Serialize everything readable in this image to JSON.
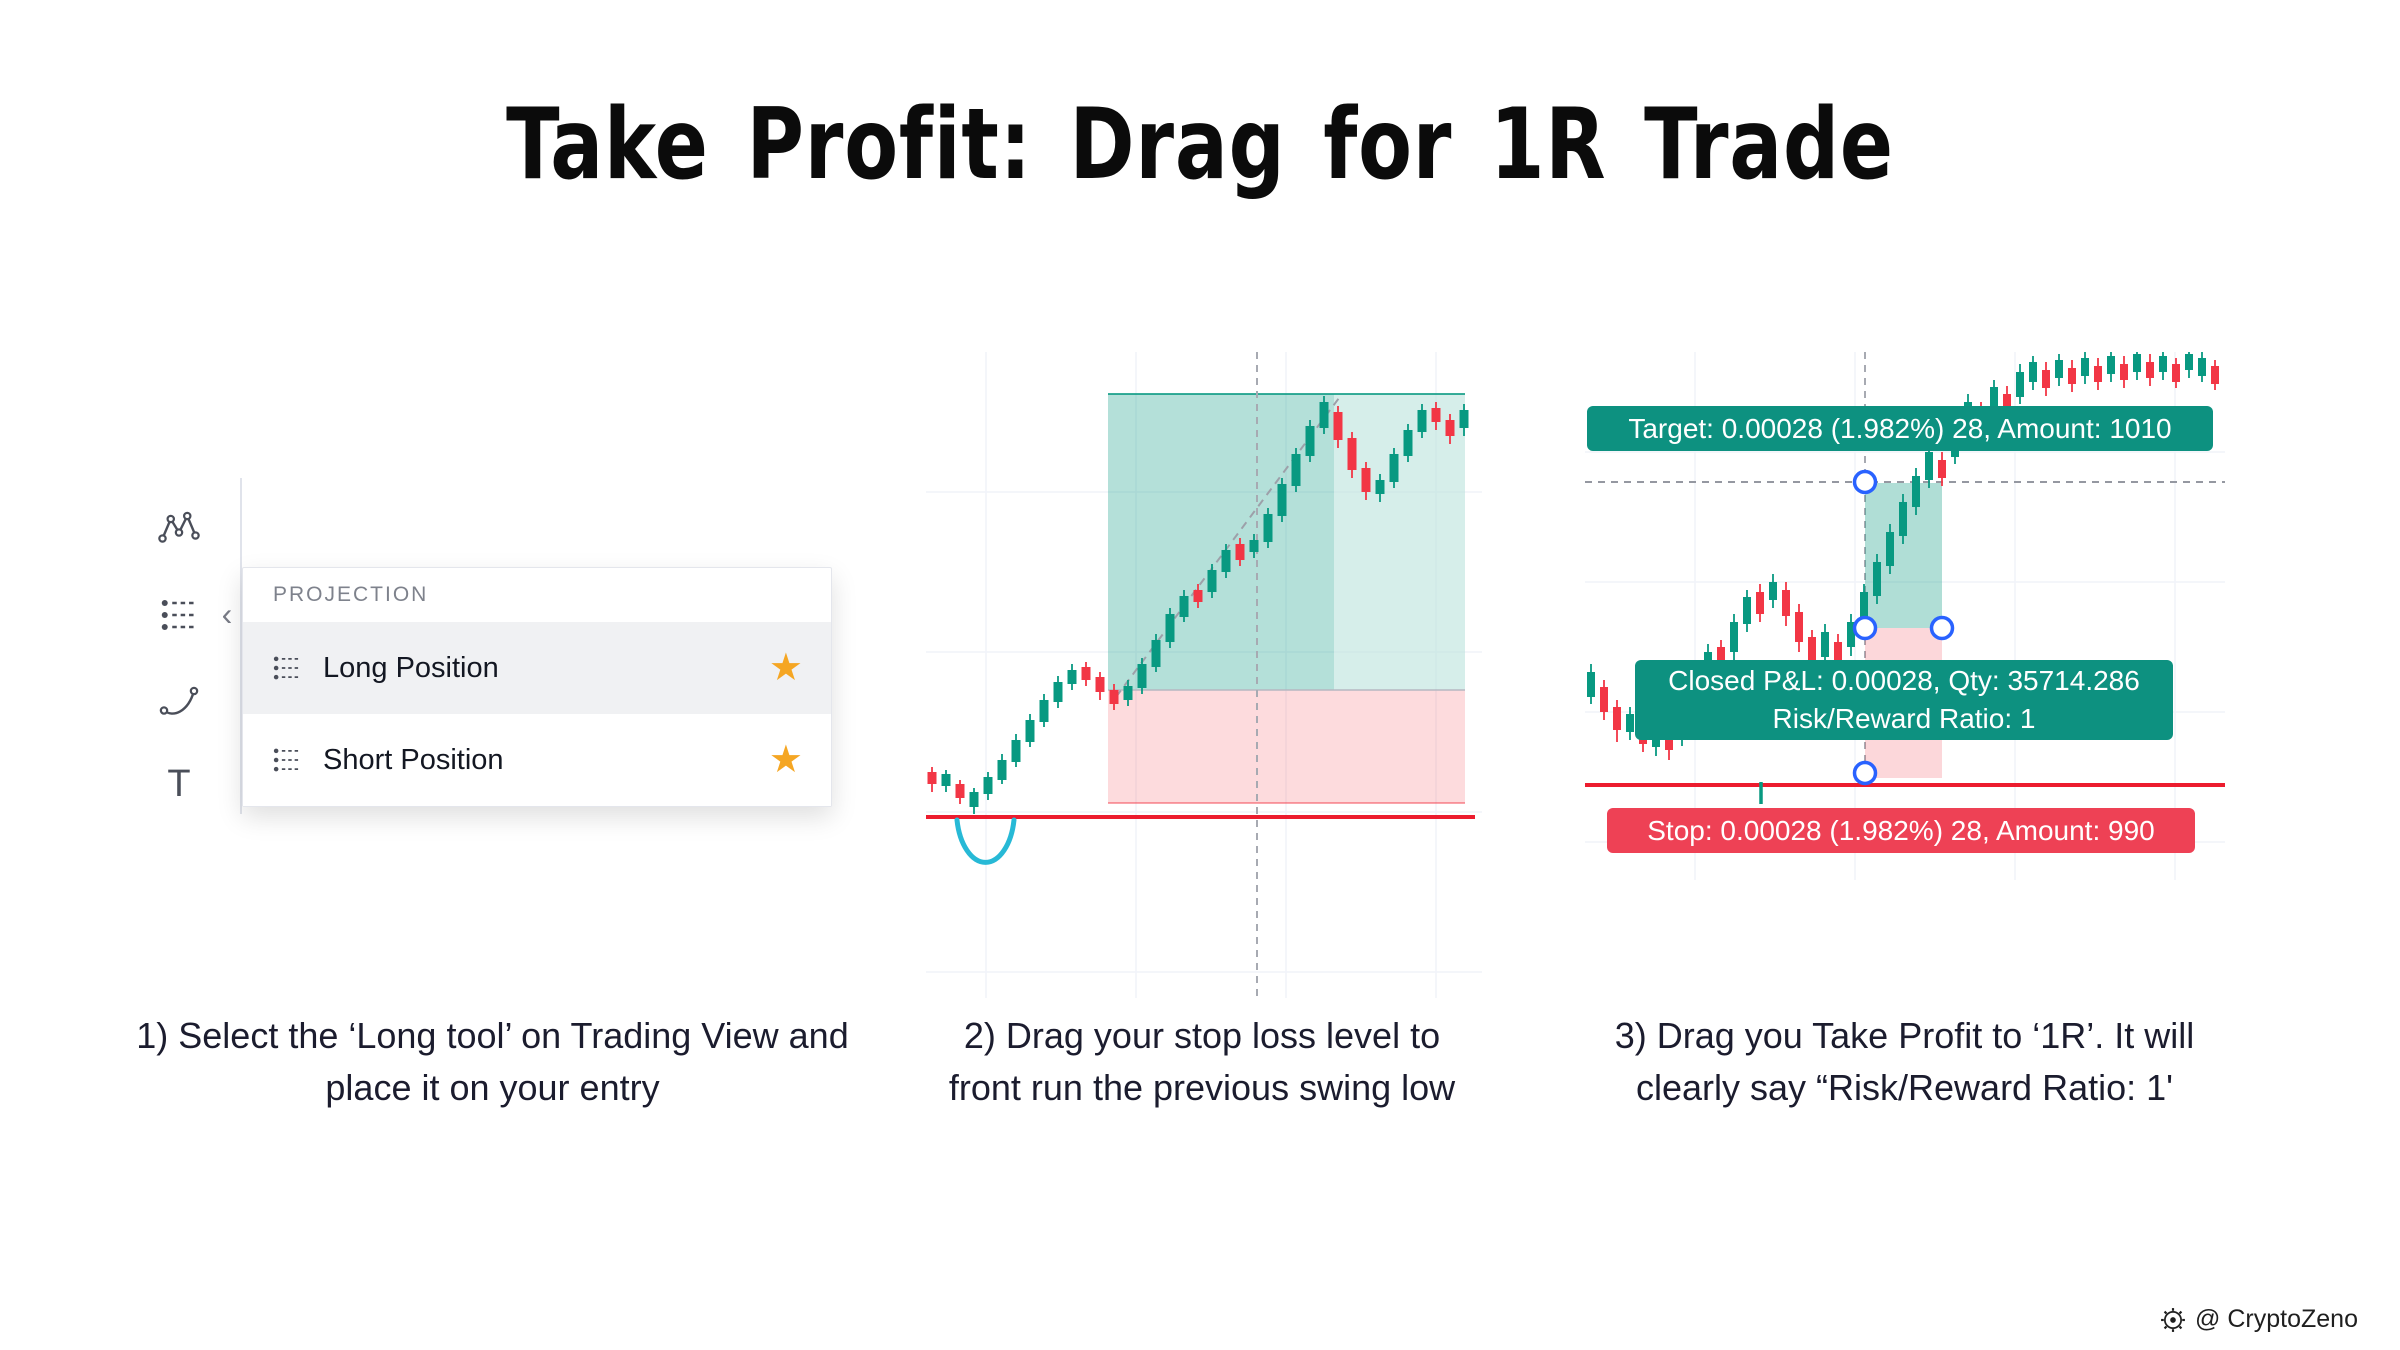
{
  "page": {
    "title": "Take Profit: Drag for 1R Trade",
    "watermark": "@ CryptoZeno"
  },
  "toolbar": {
    "chevron": "‹",
    "text_icon_glyph": "T"
  },
  "menu": {
    "header": "PROJECTION",
    "star": "★",
    "items": [
      {
        "label": "Long Position",
        "favorite": true,
        "highlighted": true
      },
      {
        "label": "Short Position",
        "favorite": true,
        "highlighted": false
      }
    ]
  },
  "right_chart": {
    "target_label": "Target: 0.00028 (1.982%) 28, Amount: 1010",
    "pnl_line1": "Closed P&L: 0.00028, Qty: 35714.286",
    "pnl_line2": "Risk/Reward Ratio: 1",
    "stop_label": "Stop: 0.00028 (1.982%) 28, Amount: 990"
  },
  "captions": [
    "1) Select the ‘Long tool’ on Trading View and place it on your entry",
    "2) Drag your stop loss level to front run the previous swing low",
    "3) Drag you Take Profit to ‘1R’. It will clearly say “Risk/Reward Ratio: 1'"
  ],
  "colors": {
    "up": "#089981",
    "down": "#f23645",
    "stop_line_red": "#ec1c2e",
    "badge_green": "#0d9180",
    "badge_red": "#ee4155",
    "handle_blue": "#2962ff",
    "annotation_cyan": "#27b9d6",
    "star_gold": "#f5a623"
  },
  "chart_data": [
    {
      "type": "candlestick",
      "name": "middle-chart",
      "candle_width": 9,
      "up_color": "#089981",
      "down_color": "#f23645",
      "columns": [
        "x",
        "wick_top",
        "wick_bottom",
        "body_top",
        "body_bottom",
        "direction"
      ],
      "candles": [
        [
          6,
          415,
          440,
          420,
          432,
          "d"
        ],
        [
          20,
          418,
          440,
          422,
          434,
          "u"
        ],
        [
          34,
          428,
          452,
          432,
          446,
          "d"
        ],
        [
          48,
          436,
          462,
          440,
          455,
          "u"
        ],
        [
          62,
          420,
          448,
          425,
          442,
          "u"
        ],
        [
          76,
          402,
          432,
          408,
          428,
          "u"
        ],
        [
          90,
          382,
          415,
          388,
          410,
          "u"
        ],
        [
          104,
          362,
          395,
          368,
          390,
          "u"
        ],
        [
          118,
          342,
          375,
          348,
          370,
          "u"
        ],
        [
          132,
          324,
          356,
          330,
          350,
          "u"
        ],
        [
          146,
          312,
          338,
          318,
          332,
          "u"
        ],
        [
          160,
          310,
          334,
          315,
          328,
          "d"
        ],
        [
          174,
          320,
          348,
          325,
          340,
          "d"
        ],
        [
          188,
          332,
          358,
          338,
          352,
          "d"
        ],
        [
          202,
          328,
          354,
          334,
          348,
          "u"
        ],
        [
          216,
          306,
          342,
          312,
          336,
          "u"
        ],
        [
          230,
          282,
          320,
          288,
          315,
          "u"
        ],
        [
          244,
          256,
          296,
          262,
          290,
          "u"
        ],
        [
          258,
          238,
          270,
          244,
          265,
          "u"
        ],
        [
          272,
          232,
          256,
          238,
          250,
          "d"
        ],
        [
          286,
          212,
          246,
          218,
          240,
          "u"
        ],
        [
          300,
          192,
          226,
          198,
          220,
          "u"
        ],
        [
          314,
          186,
          214,
          192,
          208,
          "d"
        ],
        [
          328,
          182,
          206,
          188,
          200,
          "u"
        ],
        [
          342,
          156,
          196,
          162,
          190,
          "u"
        ],
        [
          356,
          126,
          170,
          132,
          164,
          "u"
        ],
        [
          370,
          96,
          140,
          102,
          134,
          "u"
        ],
        [
          384,
          68,
          110,
          74,
          104,
          "u"
        ],
        [
          398,
          44,
          82,
          50,
          76,
          "u"
        ],
        [
          412,
          54,
          96,
          60,
          88,
          "d"
        ],
        [
          426,
          80,
          126,
          86,
          118,
          "d"
        ],
        [
          440,
          110,
          148,
          116,
          140,
          "d"
        ],
        [
          454,
          122,
          150,
          128,
          142,
          "u"
        ],
        [
          468,
          96,
          136,
          102,
          130,
          "u"
        ],
        [
          482,
          72,
          110,
          78,
          104,
          "u"
        ],
        [
          496,
          52,
          86,
          58,
          80,
          "u"
        ],
        [
          510,
          50,
          78,
          56,
          70,
          "d"
        ],
        [
          524,
          62,
          92,
          68,
          84,
          "d"
        ],
        [
          538,
          52,
          84,
          58,
          76,
          "u"
        ]
      ]
    },
    {
      "type": "candlestick",
      "name": "right-chart",
      "candle_width": 8,
      "up_color": "#089981",
      "down_color": "#f23645",
      "columns": [
        "x",
        "wick_top",
        "wick_bottom",
        "body_top",
        "body_bottom",
        "direction"
      ],
      "candles": [
        [
          6,
          312,
          352,
          320,
          345,
          "u"
        ],
        [
          19,
          328,
          368,
          335,
          360,
          "d"
        ],
        [
          32,
          348,
          390,
          355,
          378,
          "d"
        ],
        [
          45,
          355,
          388,
          362,
          380,
          "u"
        ],
        [
          58,
          362,
          400,
          370,
          392,
          "d"
        ],
        [
          71,
          368,
          404,
          375,
          395,
          "u"
        ],
        [
          84,
          372,
          408,
          380,
          398,
          "d"
        ],
        [
          97,
          352,
          394,
          360,
          385,
          "u"
        ],
        [
          110,
          322,
          370,
          330,
          362,
          "u"
        ],
        [
          123,
          292,
          340,
          300,
          332,
          "u"
        ],
        [
          136,
          288,
          324,
          295,
          315,
          "d"
        ],
        [
          149,
          262,
          308,
          270,
          300,
          "u"
        ],
        [
          162,
          238,
          280,
          245,
          272,
          "u"
        ],
        [
          175,
          232,
          270,
          240,
          262,
          "d"
        ],
        [
          188,
          222,
          256,
          230,
          248,
          "u"
        ],
        [
          201,
          230,
          274,
          238,
          264,
          "d"
        ],
        [
          214,
          252,
          300,
          260,
          290,
          "d"
        ],
        [
          227,
          278,
          325,
          285,
          315,
          "d"
        ],
        [
          240,
          272,
          314,
          280,
          305,
          "u"
        ],
        [
          253,
          282,
          320,
          290,
          310,
          "d"
        ],
        [
          266,
          262,
          304,
          270,
          295,
          "u"
        ],
        [
          279,
          232,
          280,
          240,
          272,
          "u"
        ],
        [
          292,
          202,
          252,
          210,
          244,
          "u"
        ],
        [
          305,
          172,
          222,
          180,
          214,
          "u"
        ],
        [
          318,
          142,
          192,
          150,
          184,
          "u"
        ],
        [
          331,
          116,
          163,
          124,
          155,
          "u"
        ],
        [
          344,
          92,
          136,
          100,
          128,
          "u"
        ],
        [
          357,
          100,
          134,
          108,
          126,
          "d"
        ],
        [
          370,
          68,
          112,
          75,
          105,
          "u"
        ],
        [
          383,
          42,
          88,
          50,
          80,
          "u"
        ],
        [
          396,
          50,
          86,
          58,
          78,
          "d"
        ],
        [
          409,
          28,
          70,
          35,
          62,
          "u"
        ],
        [
          422,
          34,
          68,
          42,
          60,
          "d"
        ],
        [
          435,
          12,
          52,
          20,
          45,
          "u"
        ],
        [
          448,
          4,
          38,
          10,
          30,
          "u"
        ],
        [
          461,
          10,
          44,
          18,
          36,
          "d"
        ],
        [
          474,
          2,
          34,
          8,
          26,
          "u"
        ],
        [
          487,
          8,
          40,
          16,
          32,
          "d"
        ],
        [
          500,
          0,
          32,
          6,
          24,
          "u"
        ],
        [
          513,
          6,
          38,
          14,
          30,
          "d"
        ],
        [
          526,
          0,
          30,
          4,
          22,
          "u"
        ],
        [
          539,
          4,
          36,
          12,
          28,
          "d"
        ],
        [
          552,
          0,
          28,
          2,
          20,
          "u"
        ],
        [
          565,
          2,
          34,
          10,
          26,
          "d"
        ],
        [
          578,
          0,
          28,
          4,
          20,
          "u"
        ],
        [
          591,
          6,
          36,
          12,
          30,
          "d"
        ],
        [
          604,
          0,
          26,
          2,
          18,
          "u"
        ],
        [
          617,
          0,
          30,
          6,
          24,
          "u"
        ],
        [
          630,
          8,
          38,
          14,
          32,
          "d"
        ]
      ]
    }
  ]
}
